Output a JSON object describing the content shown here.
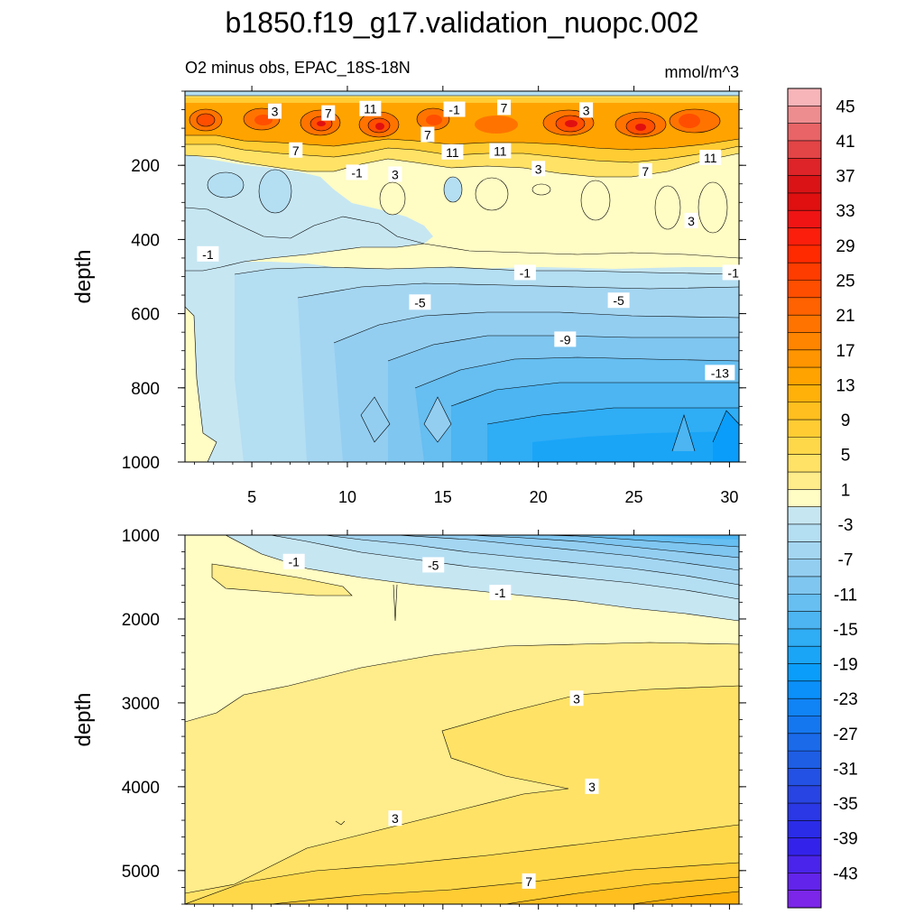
{
  "chart_data": {
    "type": "contour",
    "title": "b1850.f19_g17.validation_nuopc.002",
    "subtitle_left": "O2 minus obs, EPAC_18S-18N",
    "units": "mmol/m^3",
    "x_ticks": [
      "5",
      "10",
      "15",
      "20",
      "25",
      "30"
    ],
    "xlim": [
      1.5,
      30.5
    ],
    "panels": [
      {
        "name": "upper",
        "ylabel": "depth",
        "ylim": [
          0,
          1000
        ],
        "y_ticks": [
          "200",
          "400",
          "600",
          "800",
          "1000"
        ],
        "contour_labels": [
          {
            "text": "3",
            "x": 6.2,
            "y": 55
          },
          {
            "text": "7",
            "x": 9.0,
            "y": 60
          },
          {
            "text": "11",
            "x": 11.2,
            "y": 48
          },
          {
            "text": "-1",
            "x": 15.6,
            "y": 50
          },
          {
            "text": "7",
            "x": 18.2,
            "y": 45
          },
          {
            "text": "3",
            "x": 22.5,
            "y": 52
          },
          {
            "text": "7",
            "x": 14.2,
            "y": 118
          },
          {
            "text": "7",
            "x": 7.3,
            "y": 160
          },
          {
            "text": "11",
            "x": 15.5,
            "y": 165
          },
          {
            "text": "11",
            "x": 18.0,
            "y": 162
          },
          {
            "text": "11",
            "x": 29.0,
            "y": 180
          },
          {
            "text": "3",
            "x": 20.0,
            "y": 210
          },
          {
            "text": "7",
            "x": 25.6,
            "y": 216
          },
          {
            "text": "-1",
            "x": 10.5,
            "y": 220
          },
          {
            "text": "3",
            "x": 12.5,
            "y": 225
          },
          {
            "text": "3",
            "x": 28.0,
            "y": 350
          },
          {
            "text": "-1",
            "x": 2.7,
            "y": 440
          },
          {
            "text": "-1",
            "x": 19.3,
            "y": 490
          },
          {
            "text": "-1",
            "x": 30.2,
            "y": 490
          },
          {
            "text": "-5",
            "x": 13.8,
            "y": 570
          },
          {
            "text": "-5",
            "x": 24.2,
            "y": 565
          },
          {
            "text": "-9",
            "x": 21.4,
            "y": 670
          },
          {
            "text": "-13",
            "x": 29.5,
            "y": 760
          }
        ]
      },
      {
        "name": "lower",
        "ylabel": "depth",
        "ylim": [
          1000,
          5400
        ],
        "y_ticks": [
          "1000",
          "2000",
          "3000",
          "4000",
          "5000"
        ],
        "contour_labels": [
          {
            "text": "-1",
            "x": 7.2,
            "y": 1320
          },
          {
            "text": "-5",
            "x": 14.5,
            "y": 1360
          },
          {
            "text": "-1",
            "x": 18.0,
            "y": 1690
          },
          {
            "text": "3",
            "x": 22.0,
            "y": 2950
          },
          {
            "text": "3",
            "x": 22.8,
            "y": 4000
          },
          {
            "text": "3",
            "x": 12.5,
            "y": 4380
          },
          {
            "text": "7",
            "x": 19.5,
            "y": 5130
          }
        ]
      }
    ],
    "colorbar": {
      "labels": [
        "45",
        "41",
        "37",
        "33",
        "29",
        "25",
        "21",
        "17",
        "13",
        "9",
        "5",
        "1",
        "-3",
        "-7",
        "-11",
        "-15",
        "-19",
        "-23",
        "-27",
        "-31",
        "-35",
        "-39",
        "-43"
      ],
      "levels": [
        47,
        45,
        43,
        41,
        39,
        37,
        35,
        33,
        31,
        29,
        27,
        25,
        23,
        21,
        19,
        17,
        15,
        13,
        11,
        9,
        7,
        5,
        3,
        1,
        -1,
        -3,
        -5,
        -7,
        -9,
        -11,
        -13,
        -15,
        -17,
        -19,
        -21,
        -23,
        -25,
        -27,
        -29,
        -31,
        -33,
        -35,
        -37,
        -39,
        -41,
        -43,
        -45
      ],
      "colors": [
        "#f7b5b9",
        "#ee8d8f",
        "#e86466",
        "#e34446",
        "#de2428",
        "#d91316",
        "#e01010",
        "#f01414",
        "#fb1e0c",
        "#ff2a00",
        "#ff3c00",
        "#ff4e00",
        "#ff6200",
        "#ff7400",
        "#ff8500",
        "#ff9500",
        "#ffa300",
        "#ffb10a",
        "#ffbf1e",
        "#ffcc33",
        "#ffd84a",
        "#ffe266",
        "#ffec8a",
        "#fffcc4",
        "#c6e6f2",
        "#b4def2",
        "#a4d6f2",
        "#93cef1",
        "#7fc6f0",
        "#66bef1",
        "#4cb5f2",
        "#2fadf5",
        "#1aa5f7",
        "#0a9dfa",
        "#0b90fa",
        "#1083f5",
        "#1577ef",
        "#1a6aea",
        "#1e5ee5",
        "#2351e3",
        "#2844e2",
        "#2a38e5",
        "#2b2ce8",
        "#3322ea",
        "#4a24ea",
        "#6224ea",
        "#7b26e8"
      ]
    }
  }
}
